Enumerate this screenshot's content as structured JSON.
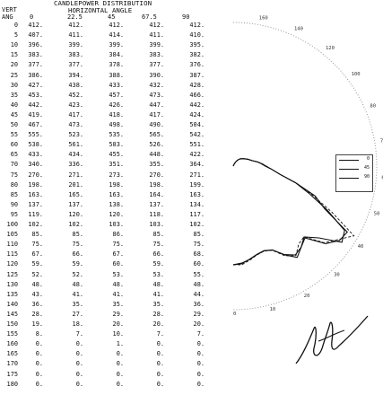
{
  "header": {
    "title": "CANDLEPOWER DISTRIBUTION",
    "subtitle": "HORIZONTAL ANGLE",
    "vert_label": "VERT",
    "ang_label": "ANG"
  },
  "columns": [
    "0",
    "22.5",
    "45",
    "67.5",
    "90"
  ],
  "rows": [
    {
      "ang": "0",
      "v": [
        "412.",
        "412.",
        "412.",
        "412.",
        "412."
      ]
    },
    {
      "ang": "5",
      "v": [
        "407.",
        "411.",
        "414.",
        "411.",
        "410."
      ]
    },
    {
      "ang": "10",
      "v": [
        "396.",
        "399.",
        "399.",
        "399.",
        "395."
      ]
    },
    {
      "ang": "15",
      "v": [
        "383.",
        "383.",
        "384.",
        "383.",
        "382."
      ]
    },
    {
      "ang": "20",
      "v": [
        "377.",
        "377.",
        "378.",
        "377.",
        "376."
      ]
    },
    {
      "ang": "25",
      "v": [
        "386.",
        "394.",
        "388.",
        "390.",
        "387."
      ]
    },
    {
      "ang": "30",
      "v": [
        "427.",
        "438.",
        "433.",
        "432.",
        "428."
      ]
    },
    {
      "ang": "35",
      "v": [
        "453.",
        "452.",
        "457.",
        "473.",
        "466."
      ]
    },
    {
      "ang": "40",
      "v": [
        "442.",
        "423.",
        "426.",
        "447.",
        "442."
      ]
    },
    {
      "ang": "45",
      "v": [
        "419.",
        "417.",
        "418.",
        "417.",
        "424."
      ]
    },
    {
      "ang": "50",
      "v": [
        "467.",
        "473.",
        "498.",
        "490.",
        "504."
      ]
    },
    {
      "ang": "55",
      "v": [
        "555.",
        "523.",
        "535.",
        "565.",
        "542."
      ]
    },
    {
      "ang": "60",
      "v": [
        "538.",
        "561.",
        "583.",
        "526.",
        "551."
      ]
    },
    {
      "ang": "65",
      "v": [
        "433.",
        "434.",
        "455.",
        "448.",
        "422."
      ]
    },
    {
      "ang": "70",
      "v": [
        "340.",
        "336.",
        "351.",
        "355.",
        "364."
      ]
    },
    {
      "ang": "75",
      "v": [
        "270.",
        "271.",
        "273.",
        "270.",
        "271."
      ]
    },
    {
      "ang": "80",
      "v": [
        "198.",
        "201.",
        "198.",
        "198.",
        "199."
      ]
    },
    {
      "ang": "85",
      "v": [
        "163.",
        "165.",
        "163.",
        "164.",
        "163."
      ]
    },
    {
      "ang": "90",
      "v": [
        "137.",
        "137.",
        "138.",
        "137.",
        "134."
      ]
    },
    {
      "ang": "95",
      "v": [
        "119.",
        "120.",
        "120.",
        "118.",
        "117."
      ]
    },
    {
      "ang": "100",
      "v": [
        "102.",
        "102.",
        "103.",
        "103.",
        "102."
      ]
    },
    {
      "ang": "105",
      "v": [
        "85.",
        "85.",
        "86.",
        "85.",
        "85."
      ]
    },
    {
      "ang": "110",
      "v": [
        "75.",
        "75.",
        "75.",
        "75.",
        "75."
      ]
    },
    {
      "ang": "115",
      "v": [
        "67.",
        "66.",
        "67.",
        "66.",
        "68."
      ]
    },
    {
      "ang": "120",
      "v": [
        "59.",
        "59.",
        "60.",
        "59.",
        "60."
      ]
    },
    {
      "ang": "125",
      "v": [
        "52.",
        "52.",
        "53.",
        "53.",
        "55."
      ]
    },
    {
      "ang": "130",
      "v": [
        "48.",
        "48.",
        "48.",
        "48.",
        "48."
      ]
    },
    {
      "ang": "135",
      "v": [
        "43.",
        "41.",
        "41.",
        "41.",
        "44."
      ]
    },
    {
      "ang": "140",
      "v": [
        "36.",
        "35.",
        "35.",
        "35.",
        "36."
      ]
    },
    {
      "ang": "145",
      "v": [
        "28.",
        "27.",
        "29.",
        "28.",
        "29."
      ]
    },
    {
      "ang": "150",
      "v": [
        "19.",
        "18.",
        "20.",
        "20.",
        "20."
      ]
    },
    {
      "ang": "155",
      "v": [
        "8.",
        "7.",
        "10.",
        "7.",
        "7."
      ]
    },
    {
      "ang": "160",
      "v": [
        "0.",
        "0.",
        "1.",
        "0.",
        "0."
      ]
    },
    {
      "ang": "165",
      "v": [
        "0.",
        "0.",
        "0.",
        "0.",
        "0."
      ]
    },
    {
      "ang": "170",
      "v": [
        "0.",
        "0.",
        "0.",
        "0.",
        "0."
      ]
    },
    {
      "ang": "175",
      "v": [
        "0.",
        "0.",
        "0.",
        "0.",
        "0."
      ]
    },
    {
      "ang": "180",
      "v": [
        "0.",
        "0.",
        "0.",
        "0.",
        "0."
      ]
    }
  ],
  "polar": {
    "tick_labels": [
      "160",
      "140",
      "120",
      "100",
      "80",
      "70",
      "60",
      "50",
      "40",
      "30",
      "20",
      "10",
      "0"
    ],
    "legend": [
      "0",
      "45",
      "90"
    ]
  },
  "signature": "handwritten signature"
}
